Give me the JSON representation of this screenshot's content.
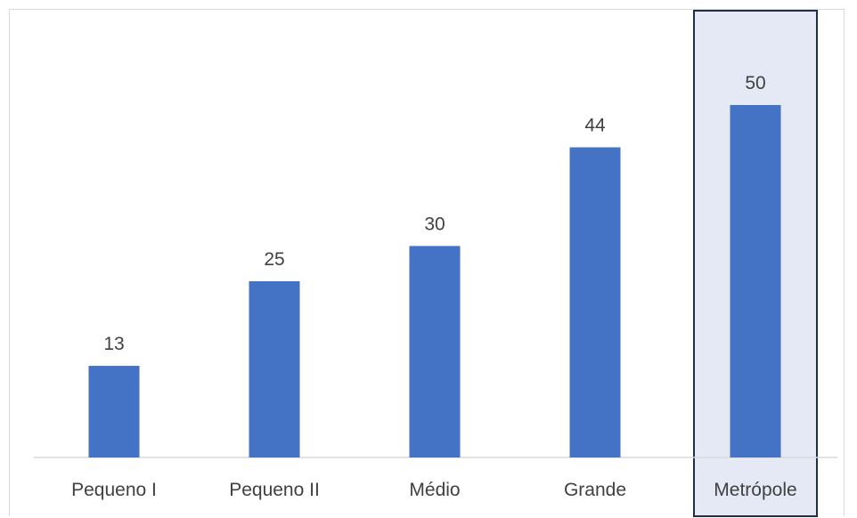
{
  "chart_data": {
    "type": "bar",
    "categories": [
      "Pequeno I",
      "Pequeno II",
      "Médio",
      "Grande",
      "Metrópole"
    ],
    "values": [
      13,
      25,
      30,
      44,
      50
    ],
    "data_labels": [
      "13",
      "25",
      "30",
      "44",
      "50"
    ],
    "ylim": [
      0,
      50
    ],
    "grid": false,
    "legend": "none",
    "highlighted_category": "Metrópole",
    "colors": {
      "bar": "#4472C4",
      "axis": "#d9d9d9",
      "highlight_fill": "#E4E9F5",
      "highlight_border": "#1F2E4D",
      "text": "#404040"
    }
  }
}
